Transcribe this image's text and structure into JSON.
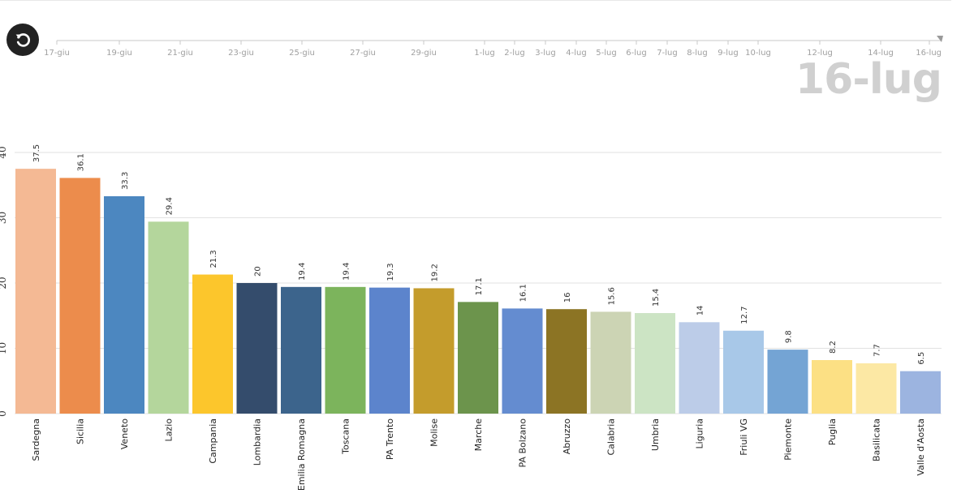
{
  "timeline": {
    "ticks": [
      "17-giu",
      "19-giu",
      "21-giu",
      "23-giu",
      "25-giu",
      "27-giu",
      "29-giu",
      "1-lug",
      "2-lug",
      "3-lug",
      "4-lug",
      "5-lug",
      "6-lug",
      "7-lug",
      "8-lug",
      "9-lug",
      "10-lug",
      "12-lug",
      "14-lug",
      "16-lug"
    ],
    "current_date": "16-lug"
  },
  "chart_data": {
    "type": "bar",
    "categories": [
      "Sardegna",
      "Sicilia",
      "Veneto",
      "Lazio",
      "Campania",
      "Lombardia",
      "Emilia Romagna",
      "Toscana",
      "PA Trento",
      "Molise",
      "Marche",
      "PA Bolzano",
      "Abruzzo",
      "Calabria",
      "Umbria",
      "Liguria",
      "Friuli VG",
      "Piemonte",
      "Puglia",
      "Basilicata",
      "Valle d'Aosta"
    ],
    "values": [
      37.5,
      36.1,
      33.3,
      29.4,
      21.3,
      20,
      19.4,
      19.4,
      19.3,
      19.2,
      17.1,
      16.1,
      16,
      15.6,
      15.4,
      14,
      12.7,
      9.8,
      8.2,
      7.7,
      6.5
    ],
    "value_labels": [
      "37.5",
      "36.1",
      "33.3",
      "29.4",
      "21.3",
      "20",
      "19.4",
      "19.4",
      "19.3",
      "19.2",
      "17.1",
      "16.1",
      "16",
      "15.6",
      "15.4",
      "14",
      "12.7",
      "9.8",
      "8.2",
      "7.7",
      "6.5"
    ],
    "colors": [
      "#f4b994",
      "#ec8c4c",
      "#4c87c0",
      "#b4d69c",
      "#fcc62c",
      "#344c6c",
      "#3c648c",
      "#7cb45c",
      "#5c84cc",
      "#c49c2c",
      "#6c944c",
      "#648cd0",
      "#8c7424",
      "#ccd4b4",
      "#cce4c4",
      "#bccce8",
      "#a8c8e8",
      "#74a4d4",
      "#fce084",
      "#fce8a4",
      "#9cb4e0"
    ],
    "yticks": [
      "0",
      "10",
      "20",
      "30",
      "40"
    ],
    "ylim": [
      0,
      40
    ],
    "grid": true,
    "title": "",
    "xlabel": "",
    "ylabel": ""
  }
}
